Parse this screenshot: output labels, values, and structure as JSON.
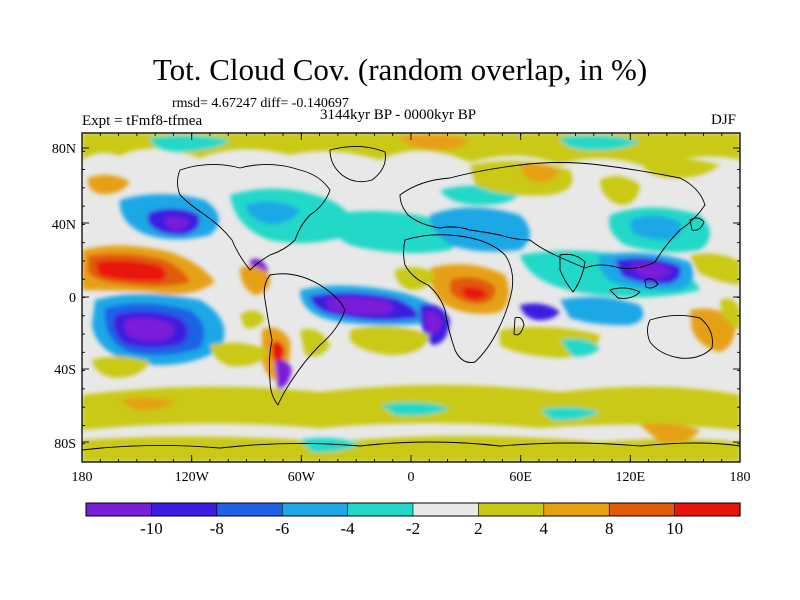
{
  "title": "Tot. Cloud Cov. (random overlap, in %)",
  "stats": "rmsd= 4.67247  diff= -0.140697",
  "period": "3144kyr BP - 0000kyr BP",
  "experiment": "Expt = tFmf8-tfmea",
  "season": "DJF",
  "lat_ticks": [
    "80N",
    "40N",
    "0",
    "40S",
    "80S"
  ],
  "lon_ticks": [
    "180",
    "120W",
    "60W",
    "0",
    "60E",
    "120E",
    "180"
  ],
  "colorbar": {
    "labels": [
      "-10",
      "-8",
      "-6",
      "-4",
      "-2",
      "2",
      "4",
      "8",
      "10"
    ],
    "colors": [
      "#7a1fd8",
      "#3c1ee0",
      "#1f62e6",
      "#1fa7e6",
      "#20d8c8",
      "#e8e8e8",
      "#c9c913",
      "#e6a012",
      "#e25a0c",
      "#e8140e"
    ]
  }
}
